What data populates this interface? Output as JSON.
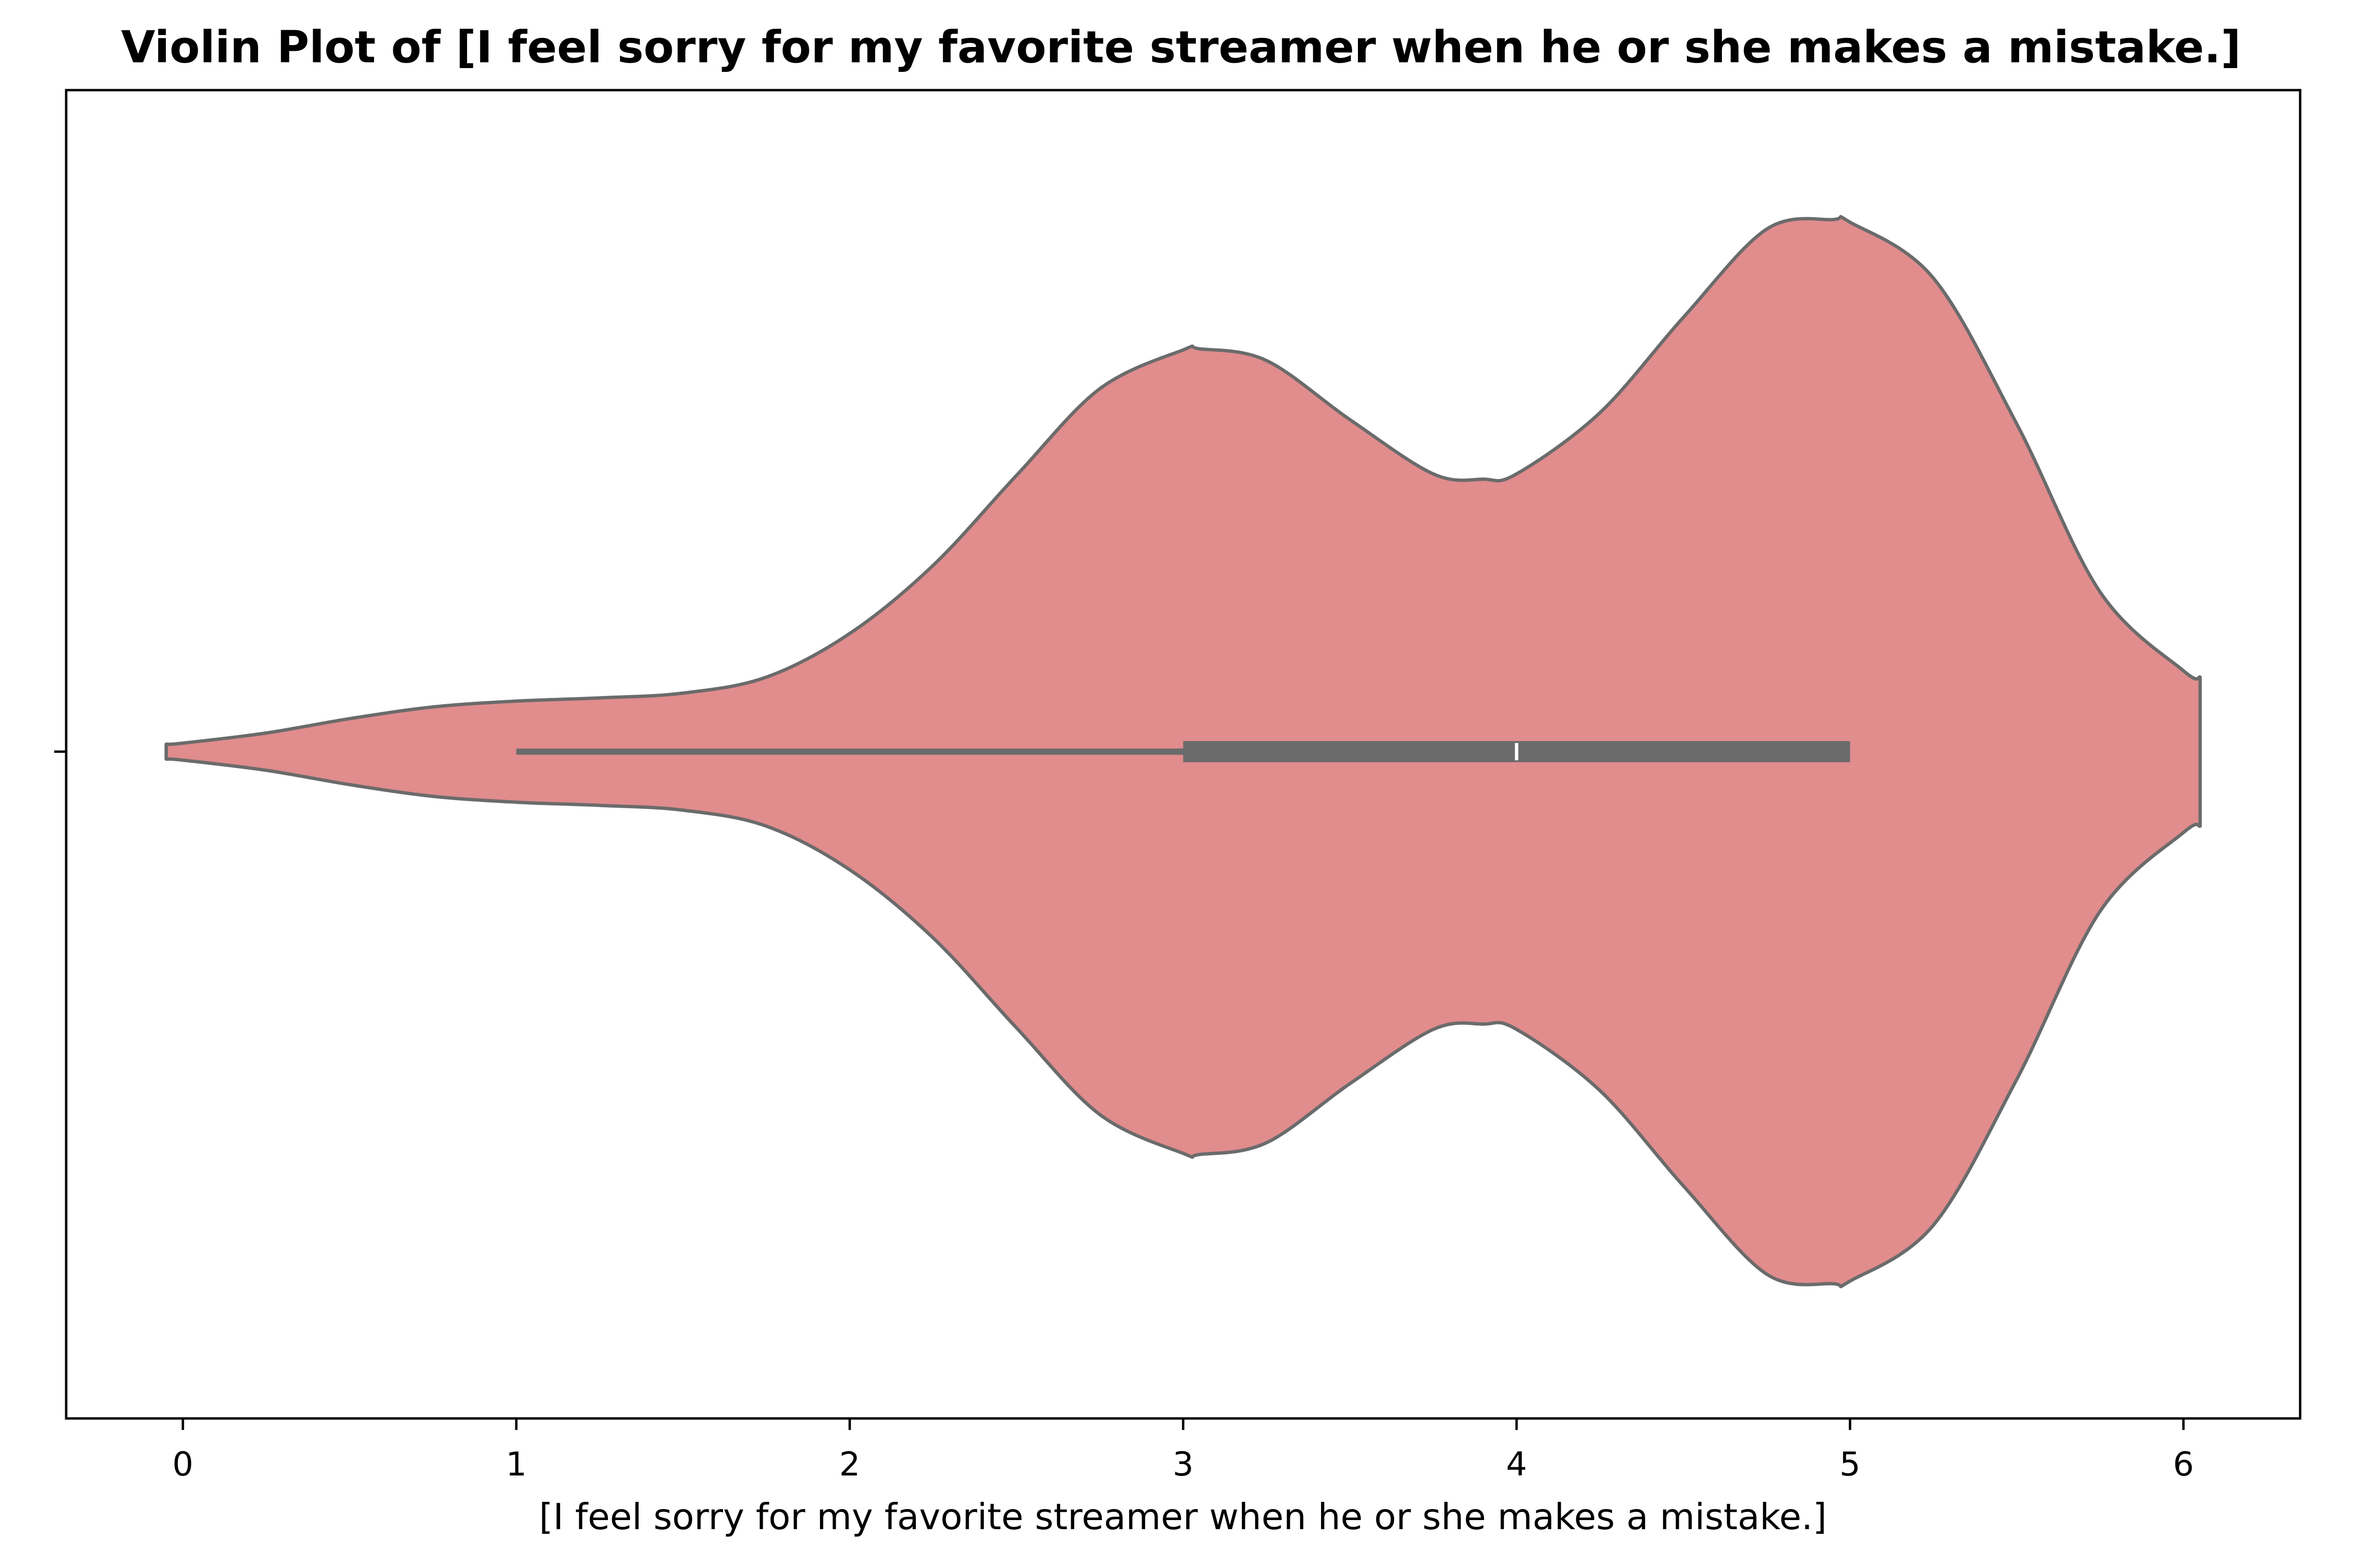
{
  "chart_data": {
    "type": "violin",
    "title": "Violin Plot of [I feel sorry for my favorite streamer when he or she makes a mistake.]",
    "xlabel": "[I feel sorry for my favorite streamer when he or she makes a mistake.]",
    "ylabel": "",
    "xlim": [
      -0.35,
      6.35
    ],
    "xticks": [
      0,
      1,
      2,
      3,
      4,
      5,
      6
    ],
    "xtick_labels": [
      "0",
      "1",
      "2",
      "3",
      "4",
      "5",
      "6"
    ],
    "grid": false,
    "orientation": "horizontal",
    "fill_color": "#e18c8d",
    "edge_color": "#6b6b6b",
    "density_range": [
      -0.05,
      6.05
    ],
    "density_profile": {
      "x": [
        -0.05,
        0.0,
        0.25,
        0.5,
        0.75,
        1.0,
        1.25,
        1.5,
        1.75,
        2.0,
        2.25,
        2.5,
        2.75,
        3.0,
        3.05,
        3.25,
        3.5,
        3.75,
        3.9,
        4.0,
        4.25,
        4.5,
        4.75,
        4.95,
        5.0,
        5.25,
        5.5,
        5.75,
        6.0,
        6.05
      ],
      "relative_width": [
        0.014,
        0.016,
        0.035,
        0.062,
        0.084,
        0.095,
        0.101,
        0.11,
        0.14,
        0.222,
        0.35,
        0.519,
        0.682,
        0.755,
        0.757,
        0.735,
        0.624,
        0.522,
        0.512,
        0.522,
        0.637,
        0.816,
        0.982,
        1.0,
        0.995,
        0.89,
        0.616,
        0.3,
        0.152,
        0.14
      ]
    },
    "box": {
      "whisker_low": 1,
      "q1": 3,
      "median": 4,
      "q3": 5,
      "whisker_high": 5
    }
  }
}
